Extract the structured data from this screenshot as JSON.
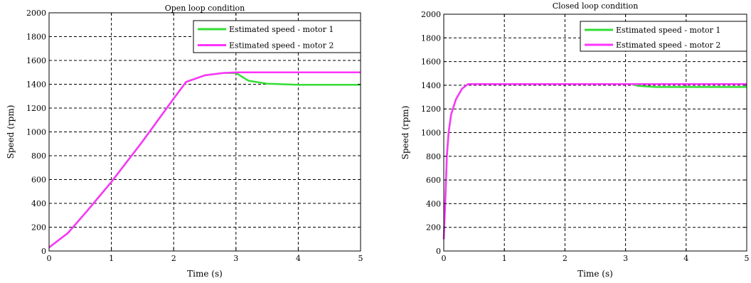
{
  "chart_data": [
    {
      "type": "line",
      "title": "Open loop condition",
      "xlabel": "Time (s)",
      "ylabel": "Speed (rpm)",
      "xlim": [
        0,
        5
      ],
      "ylim": [
        0,
        2000
      ],
      "xticks": [
        0,
        1,
        2,
        3,
        4,
        5
      ],
      "yticks": [
        0,
        200,
        400,
        600,
        800,
        1000,
        1200,
        1400,
        1600,
        1800,
        2000
      ],
      "grid": true,
      "legend_position": "top-right",
      "series": [
        {
          "name": "Estimated speed - motor 1",
          "color": "#33dd33",
          "x": [
            0,
            0.3,
            0.6,
            1.0,
            1.5,
            2.0,
            2.2,
            2.5,
            2.8,
            3.0,
            3.2,
            3.5,
            4.0,
            5.0
          ],
          "y": [
            30,
            150,
            330,
            580,
            920,
            1280,
            1420,
            1475,
            1495,
            1495,
            1430,
            1405,
            1395,
            1395
          ]
        },
        {
          "name": "Estimated speed - motor 2",
          "color": "#ff33ff",
          "x": [
            0,
            0.3,
            0.6,
            1.0,
            1.5,
            2.0,
            2.2,
            2.5,
            2.8,
            3.0,
            5.0
          ],
          "y": [
            30,
            150,
            330,
            580,
            920,
            1280,
            1420,
            1475,
            1495,
            1500,
            1500
          ]
        }
      ]
    },
    {
      "type": "line",
      "title": "Closed loop condition",
      "xlabel": "Time (s)",
      "ylabel": "Speed (rpm)",
      "xlim": [
        0,
        5
      ],
      "ylim": [
        0,
        2000
      ],
      "xticks": [
        0,
        1,
        2,
        3,
        4,
        5
      ],
      "yticks": [
        0,
        200,
        400,
        600,
        800,
        1000,
        1200,
        1400,
        1600,
        1800,
        2000
      ],
      "grid": true,
      "legend_position": "top-right",
      "series": [
        {
          "name": "Estimated speed - motor 1",
          "color": "#33dd33",
          "x": [
            0,
            0.03,
            0.05,
            0.08,
            0.12,
            0.2,
            0.3,
            0.4,
            3.1,
            3.2,
            3.5,
            5.0
          ],
          "y": [
            100,
            500,
            800,
            1000,
            1150,
            1280,
            1370,
            1410,
            1410,
            1395,
            1385,
            1385
          ]
        },
        {
          "name": "Estimated speed - motor 2",
          "color": "#ff33ff",
          "x": [
            0,
            0.03,
            0.05,
            0.08,
            0.12,
            0.2,
            0.3,
            0.4,
            5.0
          ],
          "y": [
            100,
            500,
            800,
            1000,
            1150,
            1280,
            1370,
            1410,
            1410
          ]
        }
      ]
    }
  ]
}
